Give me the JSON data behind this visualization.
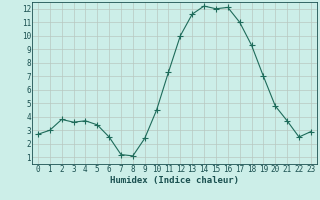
{
  "x": [
    0,
    1,
    2,
    3,
    4,
    5,
    6,
    7,
    8,
    9,
    10,
    11,
    12,
    13,
    14,
    15,
    16,
    17,
    18,
    19,
    20,
    21,
    22,
    23
  ],
  "y": [
    2.7,
    3.0,
    3.8,
    3.6,
    3.7,
    3.4,
    2.5,
    1.2,
    1.1,
    2.4,
    4.5,
    7.3,
    10.0,
    11.6,
    12.2,
    12.0,
    12.1,
    11.0,
    9.3,
    7.0,
    4.8,
    3.7,
    2.5,
    2.9
  ],
  "xlabel": "Humidex (Indice chaleur)",
  "line_color": "#1e6b5a",
  "marker": "+",
  "marker_size": 4,
  "bg_color": "#cceee8",
  "grid_color_major": "#b8c8c0",
  "grid_color_minor": "#dde8e4",
  "tick_color": "#1a5050",
  "ylim_min": 0.5,
  "ylim_max": 12.5,
  "xlim_min": -0.5,
  "xlim_max": 23.5,
  "yticks": [
    1,
    2,
    3,
    4,
    5,
    6,
    7,
    8,
    9,
    10,
    11,
    12
  ],
  "xticks": [
    0,
    1,
    2,
    3,
    4,
    5,
    6,
    7,
    8,
    9,
    10,
    11,
    12,
    13,
    14,
    15,
    16,
    17,
    18,
    19,
    20,
    21,
    22,
    23
  ],
  "xlabel_fontsize": 6.5,
  "tick_fontsize": 5.5
}
